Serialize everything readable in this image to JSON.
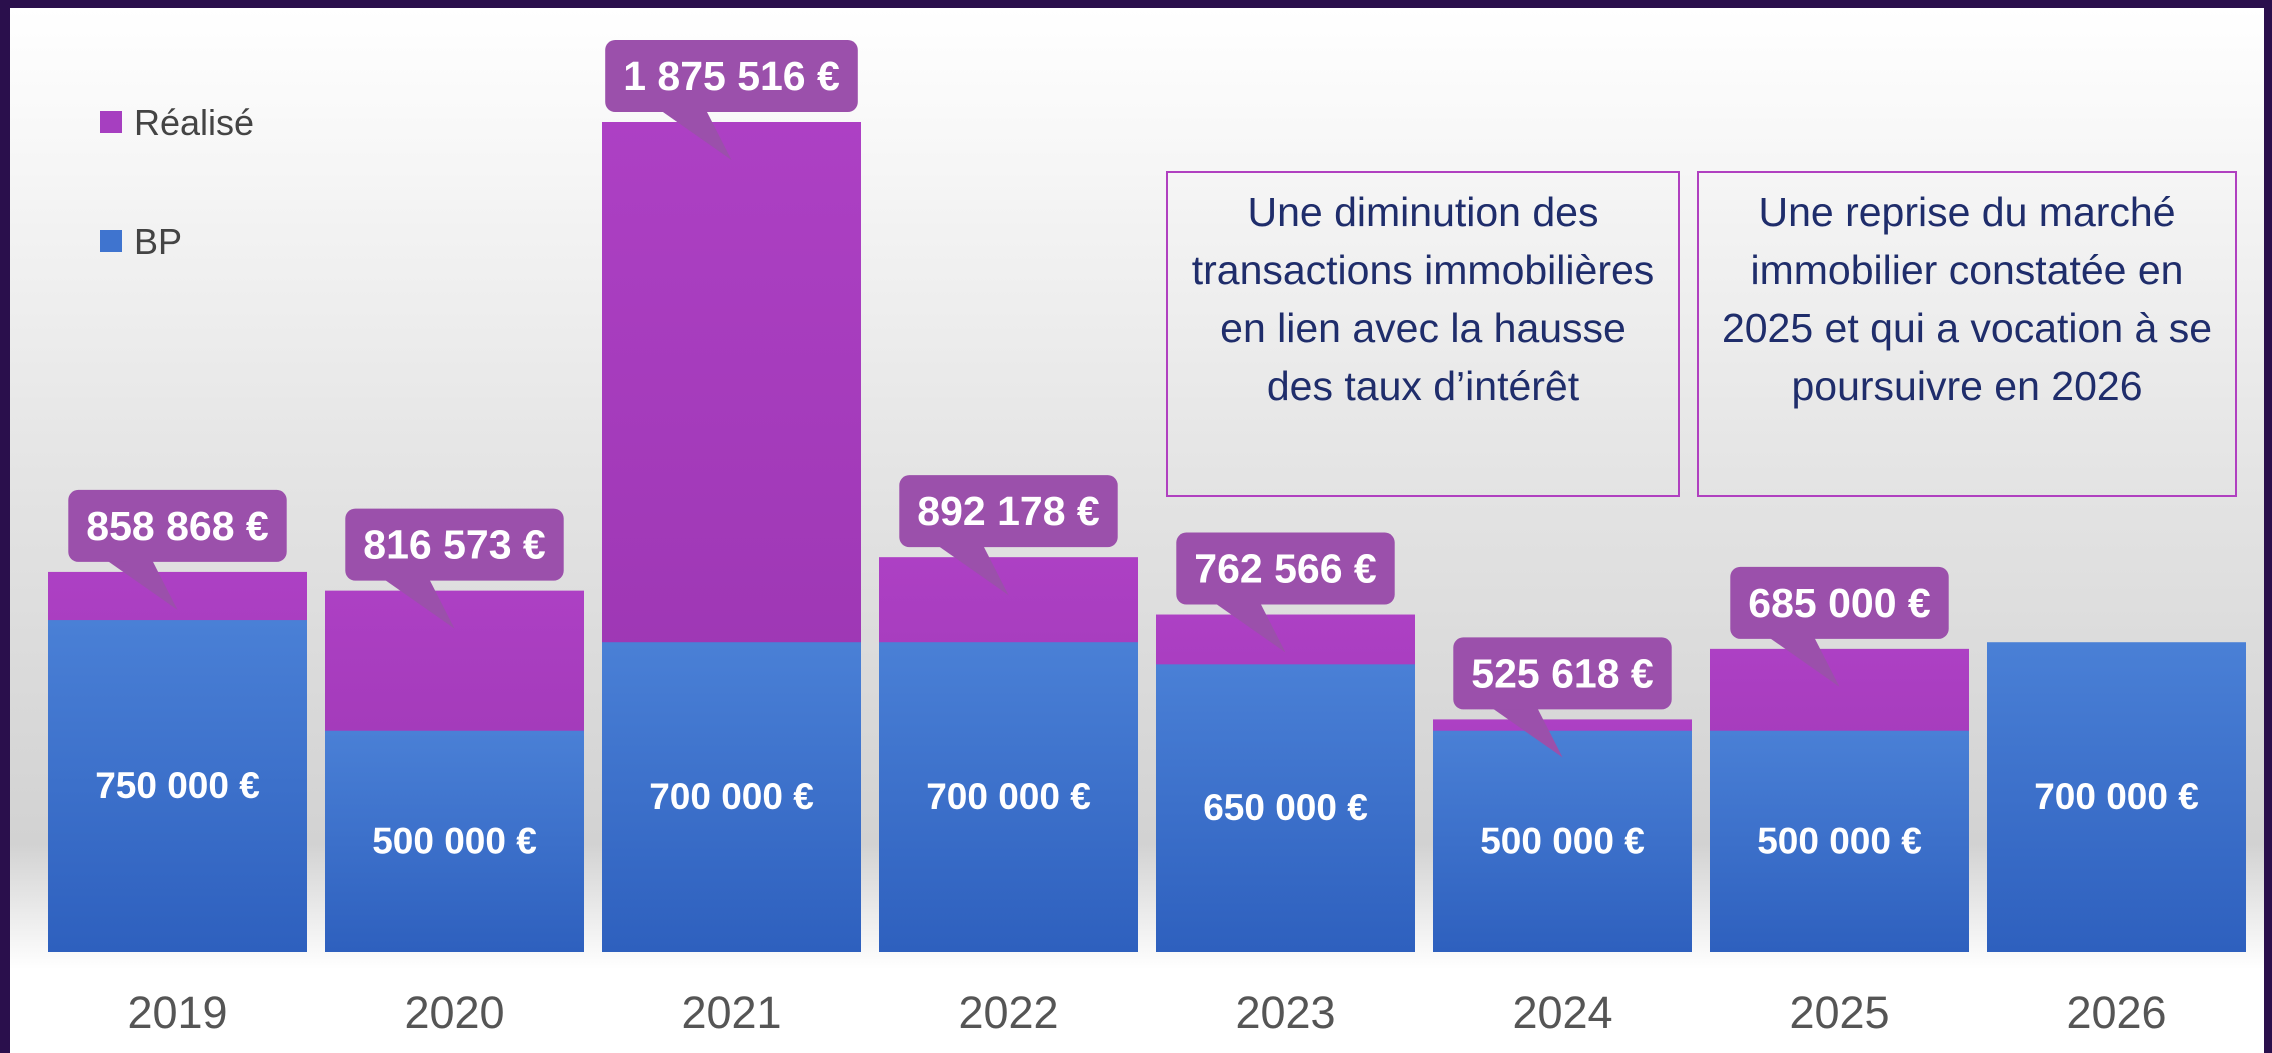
{
  "chart_data": {
    "type": "bar",
    "categories": [
      "2019",
      "2020",
      "2021",
      "2022",
      "2023",
      "2024",
      "2025",
      "2026"
    ],
    "series": [
      {
        "name": "Réalisé",
        "color": "#a63fc0",
        "values": [
          858868,
          816573,
          1875516,
          892178,
          762566,
          525618,
          685000,
          null
        ],
        "value_labels": [
          "858 868 €",
          "816 573 €",
          "1 875 516 €",
          "892 178 €",
          "762 566 €",
          "525 618 €",
          "685 000 €",
          null
        ]
      },
      {
        "name": "BP",
        "color": "#3f74cf",
        "values": [
          750000,
          500000,
          700000,
          700000,
          650000,
          500000,
          500000,
          700000
        ],
        "value_labels": [
          "750 000 €",
          "500 000 €",
          "700 000 €",
          "700 000 €",
          "650 000 €",
          "500 000 €",
          "500 000 €",
          "700 000 €"
        ]
      }
    ],
    "legend": "top-left",
    "annotations": [
      "Une diminution des transactions immobilières en lien avec la hausse des taux d’intérêt",
      "Une reprise du marché immobilier constatée en 2025 et qui a vocation à se poursuivre en 2026"
    ]
  }
}
